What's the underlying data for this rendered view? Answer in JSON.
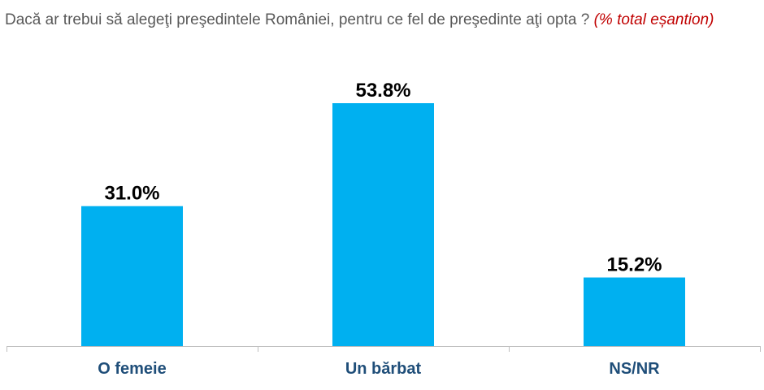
{
  "chart_data": {
    "type": "bar",
    "title": "Dacă ar trebui să alegeţi preşedintele României, pentru ce fel de preşedinte aţi opta ?",
    "subtitle": "(% total eșantion)",
    "categories": [
      "O femeie",
      "Un bărbat",
      "NS/NR"
    ],
    "values": [
      31.0,
      53.8,
      15.2
    ],
    "value_labels": [
      "31.0%",
      "53.8%",
      "15.2%"
    ],
    "xlabel": "",
    "ylabel": "",
    "ylim": [
      0,
      60
    ],
    "grid": false,
    "legend": "none",
    "colors": {
      "bar": "#00b0f0",
      "category_label": "#1f4e79",
      "value_label": "#000000",
      "title": "#595959",
      "subtitle": "#c00000",
      "axis": "#bfbfbf"
    }
  }
}
